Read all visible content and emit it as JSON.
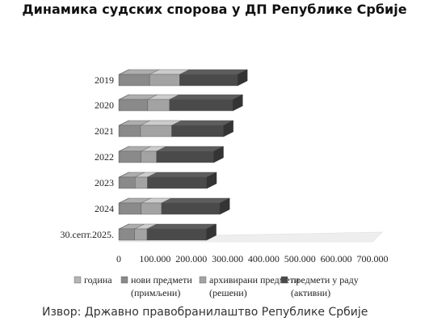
{
  "title": "Динамика судских спорова у ДП Републике Србије",
  "source": "Извор: Државно правобранилаштво Републике Србије",
  "chart_data": {
    "type": "bar",
    "orientation": "horizontal",
    "stacked": true,
    "categories": [
      "2019",
      "2020",
      "2021",
      "2022",
      "2023",
      "2024",
      "30.септ.2025."
    ],
    "series": [
      {
        "name": "година",
        "values": [
          2019,
          2020,
          2021,
          2022,
          2023,
          2024,
          2025
        ],
        "color": "#b5b5b5"
      },
      {
        "name": "нови предмети (примљени)",
        "values": [
          83000,
          78000,
          58000,
          60000,
          43000,
          60000,
          42000
        ],
        "color": "#8a8a8a"
      },
      {
        "name": "архивирани предмети (решени)",
        "values": [
          83000,
          60000,
          86000,
          42000,
          34000,
          56000,
          34000
        ],
        "color": "#a3a3a3"
      },
      {
        "name": "предмети у раду (активни)",
        "values": [
          160000,
          175000,
          143000,
          158000,
          164000,
          161000,
          164000
        ],
        "color": "#4a4a4a"
      }
    ],
    "x_ticks": [
      "0",
      "100.000",
      "200.000",
      "300.000",
      "400.000",
      "500.000",
      "600.000",
      "700.000"
    ],
    "xlim": [
      0,
      700000
    ],
    "grid": false,
    "legend_position": "bottom"
  }
}
